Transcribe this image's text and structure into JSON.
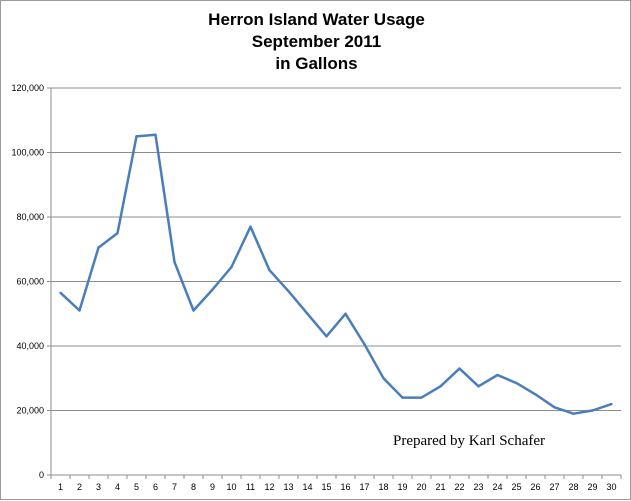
{
  "title_lines": [
    "Herron Island Water Usage",
    "September 2011",
    "in Gallons"
  ],
  "credit": "Prepared by Karl Schafer",
  "chart_data": {
    "type": "line",
    "title": "Herron Island Water Usage September 2011 in Gallons",
    "xlabel": "",
    "ylabel": "",
    "x": [
      1,
      2,
      3,
      4,
      5,
      6,
      7,
      8,
      9,
      10,
      11,
      12,
      13,
      14,
      15,
      16,
      17,
      18,
      19,
      20,
      21,
      22,
      23,
      24,
      25,
      26,
      27,
      28,
      29,
      30
    ],
    "y_tick_labels": [
      "0",
      "20,000",
      "40,000",
      "60,000",
      "80,000",
      "100,000",
      "120,000"
    ],
    "ylim": [
      0,
      120000
    ],
    "grid": "horizontal",
    "legend": "none",
    "series": [
      {
        "color": "#4a7ebb",
        "values": [
          56500,
          51000,
          70500,
          75000,
          105000,
          105500,
          66000,
          51000,
          57500,
          64500,
          77000,
          63500,
          57000,
          50000,
          43000,
          50000,
          40500,
          30000,
          24000,
          24000,
          27500,
          33000,
          27500,
          31000,
          28500,
          25000,
          21000,
          19000,
          20000,
          22000
        ]
      }
    ]
  }
}
